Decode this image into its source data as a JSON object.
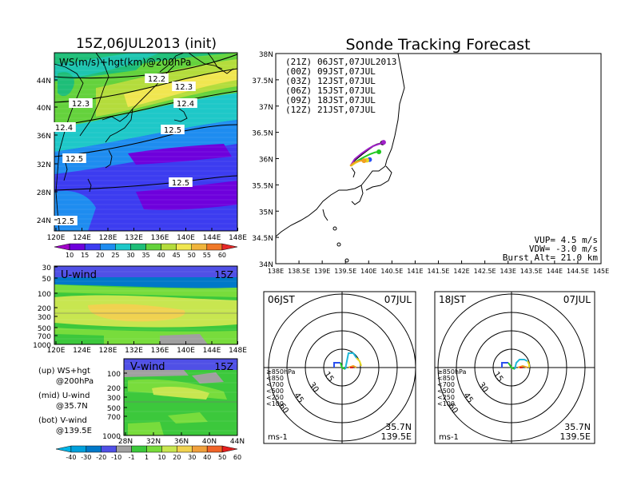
{
  "left_title": "15Z,06JUL2013 (init)",
  "right_title": "Sonde Tracking Forecast",
  "map_panel": {
    "label": "WS(m/s)+hgt(km)@200hPa",
    "lat_ticks": [
      "44N",
      "40N",
      "36N",
      "32N",
      "28N",
      "24N"
    ],
    "lon_ticks": [
      "120E",
      "124E",
      "128E",
      "132E",
      "136E",
      "140E",
      "144E",
      "148E"
    ],
    "contour_labels": [
      "12.2",
      "12.3",
      "12.3",
      "12.4",
      "12.4",
      "12.5",
      "12.5",
      "12.5",
      "12.5"
    ]
  },
  "ws_colorbar": {
    "labels": [
      "10",
      "15",
      "20",
      "25",
      "30",
      "35",
      "40",
      "45",
      "50",
      "55",
      "60"
    ]
  },
  "uwind_panel": {
    "label": "U-wind",
    "time": "15Z",
    "pressure_ticks": [
      "30",
      "50",
      "100",
      "200",
      "300",
      "500",
      "700",
      "1000"
    ],
    "lon_ticks": [
      "120E",
      "124E",
      "128E",
      "132E",
      "136E",
      "140E",
      "144E",
      "148E"
    ]
  },
  "vwind_panel": {
    "label": "V-wind",
    "time": "15Z",
    "pressure_ticks": [
      "100",
      "200",
      "300",
      "500",
      "700",
      "1000"
    ],
    "lat_ticks": [
      "28N",
      "32N",
      "36N",
      "40N",
      "44N"
    ]
  },
  "notes": [
    {
      "a": "(up) WS+hgt",
      "b": "@200hPa"
    },
    {
      "a": "(mid) U-wind",
      "b": "@35.7N"
    },
    {
      "a": "(bot) V-wind",
      "b": "@139.5E"
    }
  ],
  "wind_colorbar": {
    "labels": [
      "-40",
      "-30",
      "-20",
      "-10",
      "-1",
      "1",
      "10",
      "20",
      "30",
      "40",
      "50",
      "60"
    ]
  },
  "track_map": {
    "lat_ticks": [
      "38N",
      "37.5N",
      "37N",
      "36.5N",
      "36N",
      "35.5N",
      "35N",
      "34.5N",
      "34N"
    ],
    "lon_ticks": [
      "138E",
      "138.5E",
      "139E",
      "139.5E",
      "140E",
      "140.5E",
      "141E",
      "141.5E",
      "142E",
      "142.5E",
      "143E",
      "143.5E",
      "144E",
      "144.5E",
      "145E"
    ],
    "legend": [
      {
        "code": "(21Z)",
        "time": "06JST,07JUL2013",
        "color": "#000000"
      },
      {
        "code": "(00Z)",
        "time": "09JST,07JUL",
        "color": "#a020c8"
      },
      {
        "code": "(03Z)",
        "time": "12JST,07JUL",
        "color": "#2a4ff0"
      },
      {
        "code": "(06Z)",
        "time": "15JST,07JUL",
        "color": "#20c820"
      },
      {
        "code": "(09Z)",
        "time": "18JST,07JUL",
        "color": "#e6d81e"
      },
      {
        "code": "(12Z)",
        "time": "21JST,07JUL",
        "color": "#f0a020"
      }
    ],
    "stats": [
      "VUP= 4.5 m/s",
      "VDW= -3.0 m/s",
      "Burst Alt= 21.0 km"
    ]
  },
  "polar_left": {
    "time": "06JST",
    "date": "07JUL",
    "rings": [
      "15",
      "30",
      "45",
      "60"
    ],
    "levels": [
      "≥850hPa",
      "<850",
      "<700",
      "<500",
      "<250",
      "<100"
    ],
    "lat": "35.7N",
    "lon": "139.5E",
    "unit": "ms-1"
  },
  "polar_right": {
    "time": "18JST",
    "date": "07JUL",
    "rings": [
      "15",
      "30",
      "45",
      "60"
    ],
    "levels": [
      "≥850hPa",
      "<850",
      "<700",
      "<500",
      "<250",
      "<100"
    ],
    "lat": "35.7N",
    "lon": "139.5E",
    "unit": "ms-1"
  },
  "level_colors": [
    "#e02020",
    "#f0a020",
    "#e6d81e",
    "#20c820",
    "#20b8d8",
    "#2a4ff0"
  ],
  "ws_colors": [
    "#a000c8",
    "#6e00dc",
    "#3c3cf0",
    "#1e8cf0",
    "#1ec8c8",
    "#1ebe78",
    "#64d23c",
    "#b4dc3c",
    "#f0e650",
    "#f0b43c",
    "#f07828",
    "#e62828"
  ],
  "wind_colors": [
    "#00b4e6",
    "#00a0dc",
    "#0078c8",
    "#5050e6",
    "#a0a0a0",
    "#3cc83c",
    "#78dc3c",
    "#c8e650",
    "#f0d250",
    "#f0a03c",
    "#f06428",
    "#e61e1e"
  ],
  "chart_data": [
    {
      "type": "line",
      "title": "Sonde Tracking Forecast",
      "xlabel": "",
      "ylabel": "",
      "xlim": [
        138,
        145
      ],
      "ylim": [
        34,
        38
      ],
      "series": [
        {
          "name": "(21Z) 06JST,07JUL2013",
          "x": [
            139.62,
            139.7,
            139.85,
            140.0,
            140.1,
            140.18,
            140.26,
            140.3
          ],
          "y": [
            35.86,
            35.97,
            36.08,
            36.18,
            36.24,
            36.27,
            36.29,
            36.3
          ]
        },
        {
          "name": "(00Z) 09JST,07JUL",
          "x": [
            139.62,
            139.7,
            139.85,
            140.0,
            140.1,
            140.2,
            140.27,
            140.32
          ],
          "y": [
            35.88,
            35.99,
            36.1,
            36.19,
            36.24,
            36.27,
            36.29,
            36.31
          ]
        },
        {
          "name": "(03Z) 12JST,07JUL",
          "x": [
            139.62,
            139.72,
            139.84,
            139.95,
            140.02
          ],
          "y": [
            35.86,
            35.93,
            35.97,
            35.98,
            35.98
          ]
        },
        {
          "name": "(06Z) 15JST,07JUL",
          "x": [
            139.62,
            139.72,
            139.88,
            140.02,
            140.14,
            140.22
          ],
          "y": [
            35.86,
            35.94,
            36.02,
            36.08,
            36.12,
            36.13
          ]
        },
        {
          "name": "(09Z) 18JST,07JUL",
          "x": [
            139.62,
            139.72,
            139.82,
            139.9,
            139.96
          ],
          "y": [
            35.86,
            35.92,
            35.96,
            35.97,
            35.97
          ]
        },
        {
          "name": "(12Z) 21JST,07JUL",
          "x": [
            139.6,
            139.68,
            139.76,
            139.84,
            139.9
          ],
          "y": [
            35.86,
            35.92,
            35.95,
            35.96,
            35.96
          ]
        }
      ]
    },
    {
      "type": "heatmap",
      "title": "WS(m/s)+hgt(km)@200hPa",
      "xlim": [
        120,
        150
      ],
      "ylim": [
        22,
        48
      ],
      "contours_km": [
        12.2,
        12.3,
        12.4,
        12.5
      ]
    },
    {
      "type": "heatmap",
      "title": "U-wind",
      "xlim": [
        120,
        150
      ],
      "ylim": [
        1000,
        30
      ]
    },
    {
      "type": "heatmap",
      "title": "V-wind",
      "xlim": [
        28,
        44
      ],
      "ylim": [
        1000,
        100
      ]
    }
  ]
}
